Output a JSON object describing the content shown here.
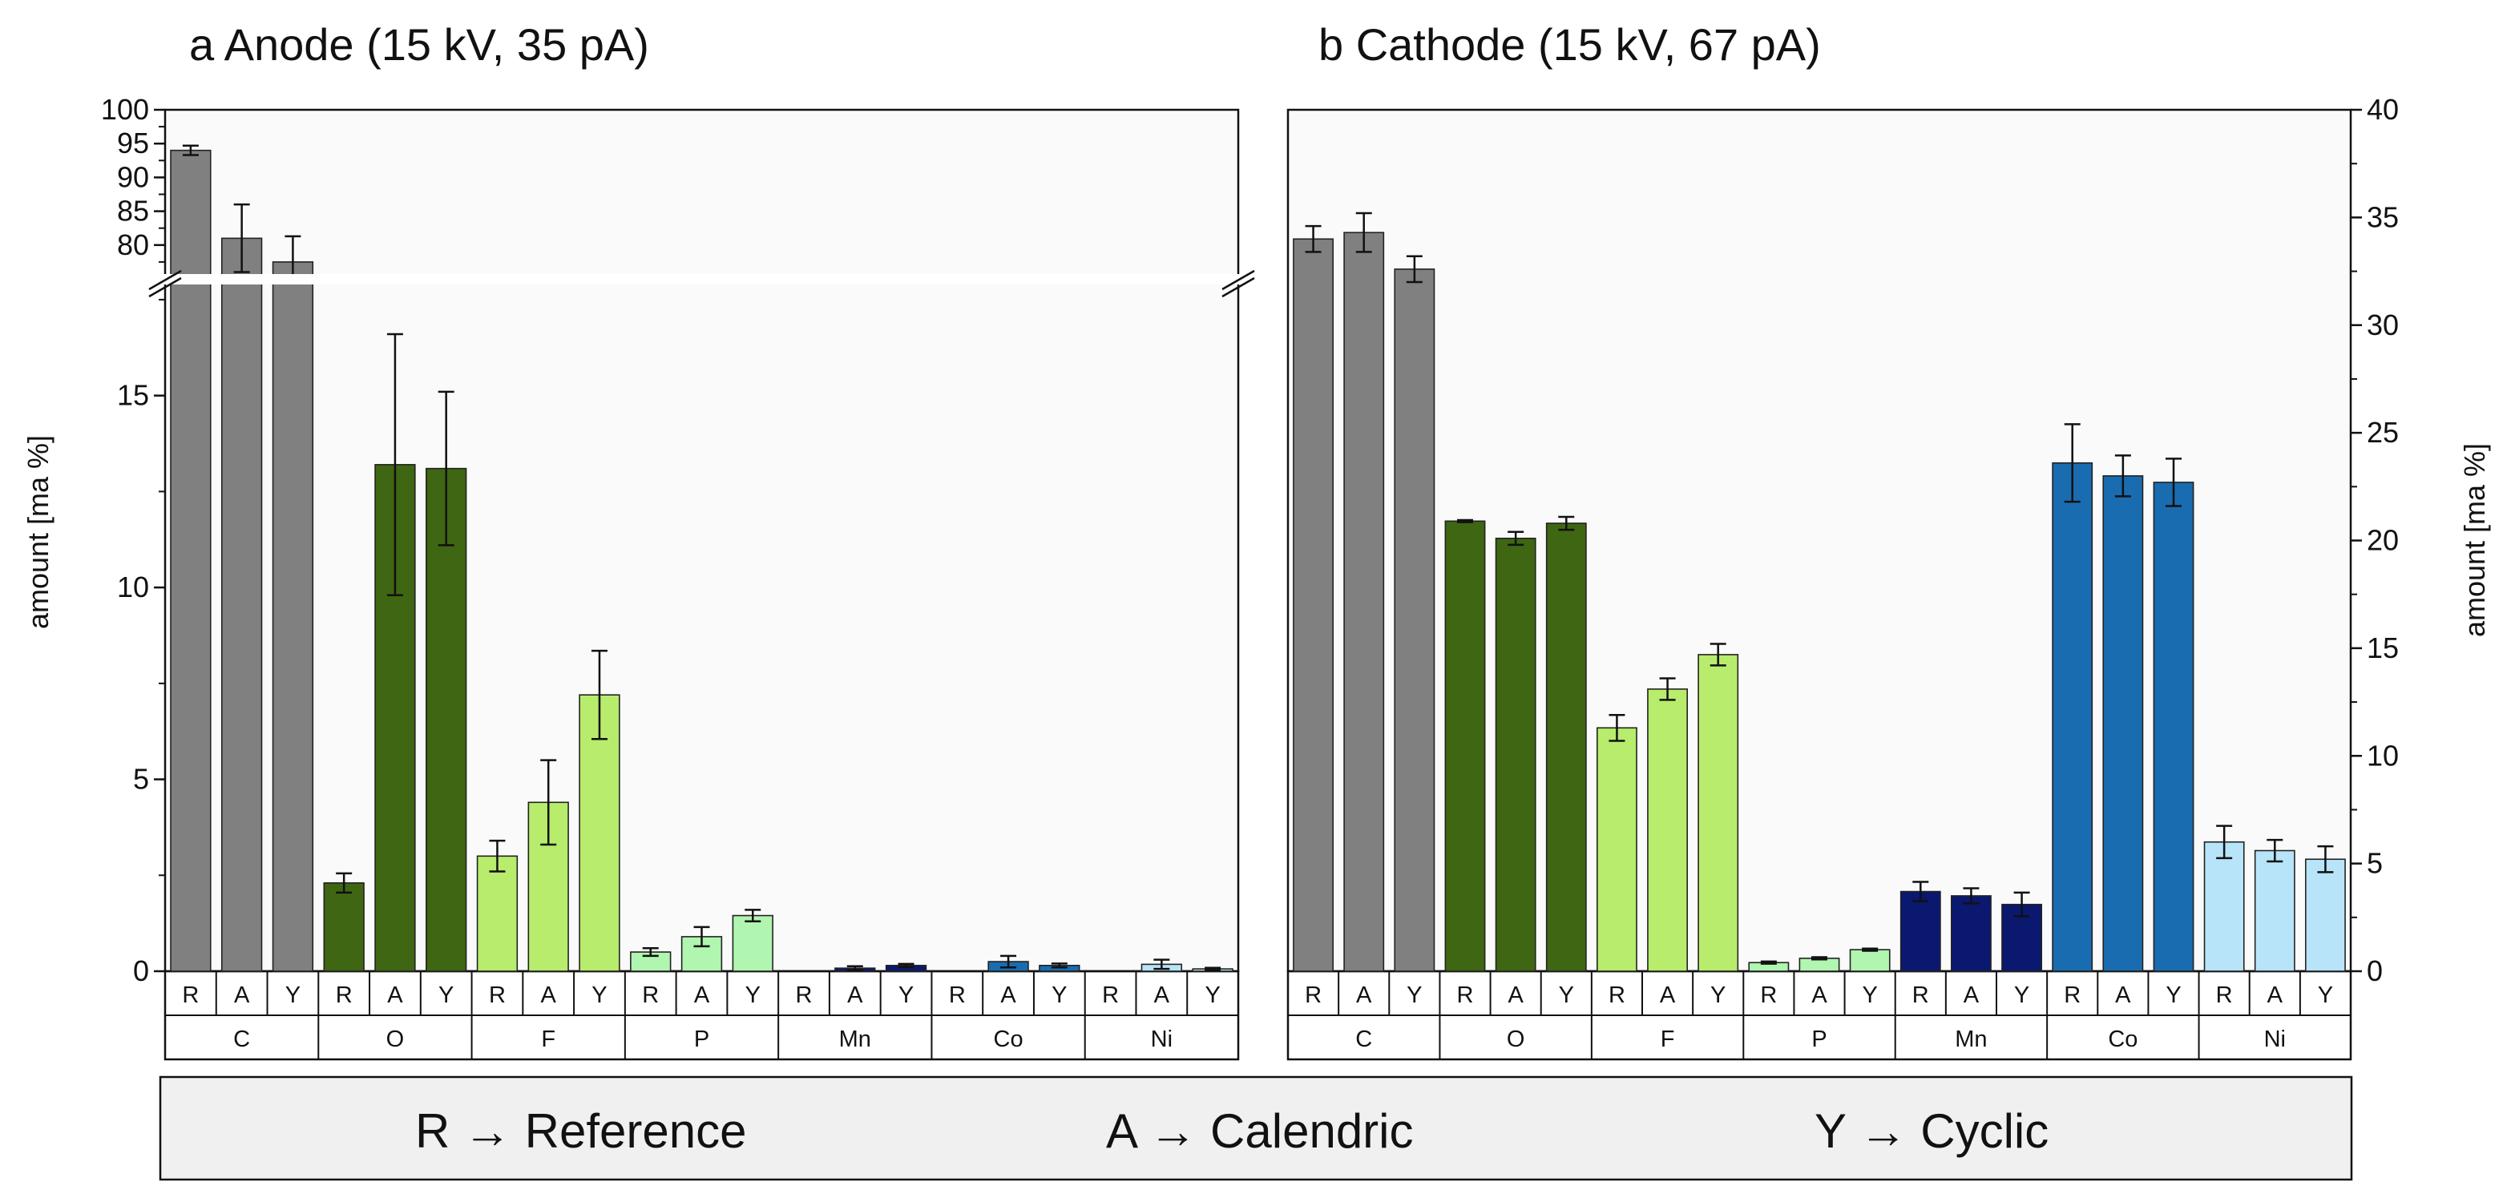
{
  "chart_data": [
    {
      "type": "bar",
      "panel": "a",
      "title": "a Anode (15 kV, 35 pA)",
      "ylabel": "amount [ma %]",
      "xlabel": "",
      "axis_side": "left",
      "ylim_lower": [
        0,
        18
      ],
      "ylim_upper": [
        75,
        100
      ],
      "axis_break": [
        18,
        75
      ],
      "yticks_lower": [
        "0",
        "5",
        "10",
        "15"
      ],
      "yticks_upper": [
        "80",
        "85",
        "90",
        "95",
        "100"
      ],
      "groups": [
        "C",
        "O",
        "F",
        "P",
        "Mn",
        "Co",
        "Ni"
      ],
      "subcategories": [
        "R",
        "A",
        "Y"
      ],
      "series": [
        {
          "name": "R",
          "values": [
            94.0,
            2.3,
            3.0,
            0.5,
            0.0,
            0.0,
            0.0
          ],
          "errors": [
            0.7,
            0.25,
            0.4,
            0.1,
            0.0,
            0.0,
            0.0
          ]
        },
        {
          "name": "A",
          "values": [
            81.0,
            13.2,
            4.4,
            0.9,
            0.08,
            0.25,
            0.18
          ],
          "errors": [
            5.0,
            3.4,
            1.1,
            0.25,
            0.05,
            0.15,
            0.12
          ]
        },
        {
          "name": "Y",
          "values": [
            77.5,
            13.1,
            7.2,
            1.45,
            0.15,
            0.15,
            0.06
          ],
          "errors": [
            3.8,
            2.0,
            1.15,
            0.15,
            0.04,
            0.05,
            0.03
          ]
        }
      ],
      "group_colors": [
        "#808080",
        "#3f6612",
        "#b8ec6c",
        "#b0f5b0",
        "#0a1870",
        "#1a6cb0",
        "#b8e4f9"
      ]
    },
    {
      "type": "bar",
      "panel": "b",
      "title": "b Cathode (15 kV, 67 pA)",
      "ylabel": "amount [ma %]",
      "xlabel": "",
      "axis_side": "right",
      "ylim": [
        0,
        40
      ],
      "yticks": [
        "0",
        "5",
        "10",
        "15",
        "20",
        "25",
        "30",
        "35",
        "40"
      ],
      "groups": [
        "C",
        "O",
        "F",
        "P",
        "Mn",
        "Co",
        "Ni"
      ],
      "subcategories": [
        "R",
        "A",
        "Y"
      ],
      "series": [
        {
          "name": "R",
          "values": [
            34.0,
            20.9,
            11.3,
            0.4,
            3.7,
            23.6,
            6.0
          ],
          "errors": [
            0.6,
            0.05,
            0.6,
            0.05,
            0.45,
            1.8,
            0.75
          ]
        },
        {
          "name": "A",
          "values": [
            34.3,
            20.1,
            13.1,
            0.6,
            3.5,
            23.0,
            5.6
          ],
          "errors": [
            0.9,
            0.3,
            0.5,
            0.05,
            0.35,
            0.95,
            0.5
          ]
        },
        {
          "name": "Y",
          "values": [
            32.6,
            20.8,
            14.7,
            1.0,
            3.1,
            22.7,
            5.2
          ],
          "errors": [
            0.6,
            0.3,
            0.5,
            0.05,
            0.55,
            1.1,
            0.6
          ]
        }
      ],
      "group_colors": [
        "#808080",
        "#3f6612",
        "#b8ec6c",
        "#b0f5b0",
        "#0a1870",
        "#1a6cb0",
        "#b8e4f9"
      ]
    }
  ],
  "legend": {
    "items": [
      "R → Reference",
      "A → Calendric",
      "Y → Cyclic"
    ]
  }
}
